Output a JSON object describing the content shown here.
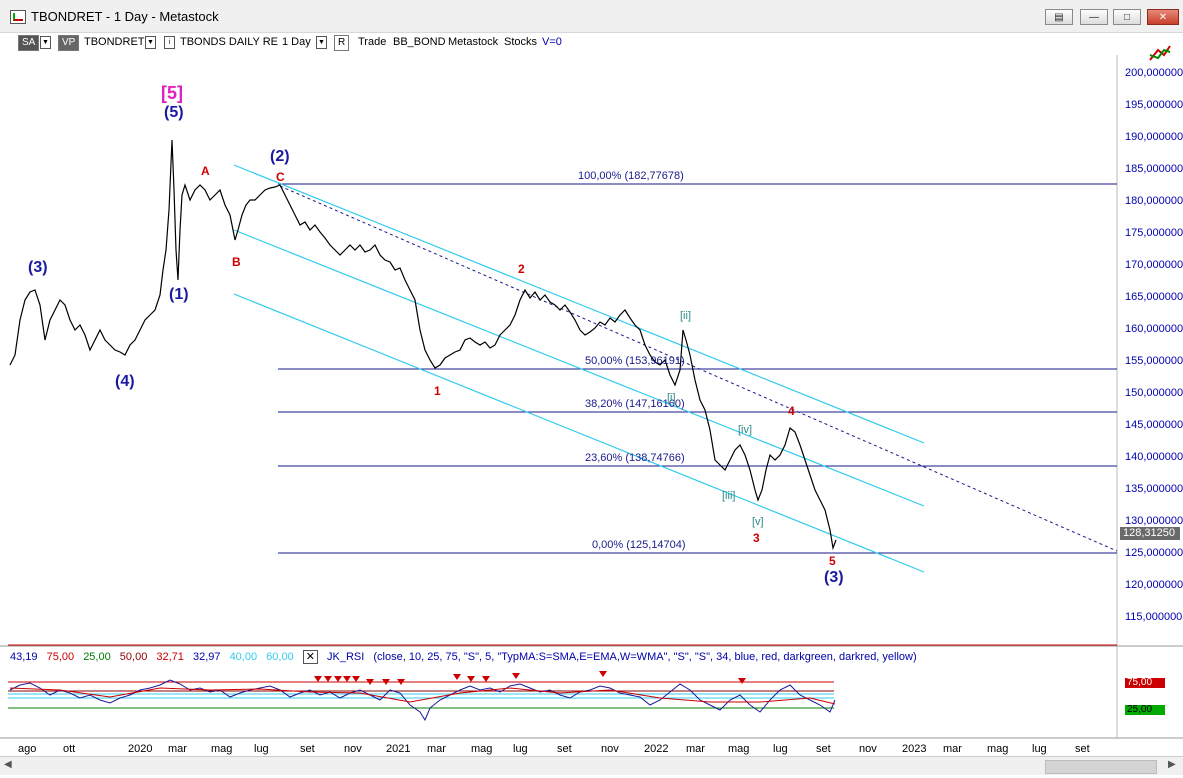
{
  "window": {
    "title": "TBONDRET - 1 Day - Metastock"
  },
  "toolbar": {
    "sa": "SA",
    "vp": "VP",
    "symbol": "TBONDRET",
    "desc": "TBONDS DAILY RE",
    "period": "1 Day",
    "r": "R",
    "trade": "Trade",
    "source": "BB_BOND",
    "app": "Metastock",
    "type": "Stocks",
    "v": "V=0"
  },
  "price_axis": [
    "200,000000",
    "195,000000",
    "190,000000",
    "185,000000",
    "180,000000",
    "175,000000",
    "170,000000",
    "165,000000",
    "160,000000",
    "155,000000",
    "150,000000",
    "145,000000",
    "140,000000",
    "135,000000",
    "130,000000",
    "125,000000",
    "120,000000",
    "115,000000"
  ],
  "last_price": "128,31250",
  "fib_levels": [
    {
      "label": "100,00% (182,77678)"
    },
    {
      "label": "50,00% (153,96191)"
    },
    {
      "label": "38,20% (147,16160)"
    },
    {
      "label": "23,60% (138,74766)"
    },
    {
      "label": "0,00% (125,14704)"
    }
  ],
  "wave_labels": {
    "w5_bracket": "[5]",
    "w5": "(5)",
    "w3a": "(3)",
    "w4": "(4)",
    "w1": "(1)",
    "w2": "(2)",
    "w3b": "(3)",
    "A": "A",
    "B": "B",
    "C": "C",
    "n1": "1",
    "n2": "2",
    "n3": "3",
    "n4": "4",
    "n5": "5",
    "ii": "[ii]",
    "iii": "[iii]",
    "iv": "[iv]",
    "v": "[v]",
    "i": "[i]"
  },
  "indicator": {
    "values": [
      "43,19",
      "75,00",
      "25,00",
      "50,00",
      "32,71",
      "32,97",
      "40,00",
      "60,00"
    ],
    "value_colors": [
      "#0000aa",
      "#cc0000",
      "#008000",
      "#8b0000",
      "#cc0000",
      "#0000aa",
      "#00aaff",
      "#00aaff"
    ],
    "name": "JK_RSI",
    "params": "(close, 10, 25, 75, \"S\", 5, \"TypMA:S=SMA,E=EMA,W=WMA\", \"S\", \"S\", 34, blue, red, darkgreen, darkred, yellow)",
    "tags": [
      "75,00",
      "25,00"
    ]
  },
  "x_axis": [
    "ago",
    "ott",
    "2020",
    "mar",
    "mag",
    "lug",
    "set",
    "nov",
    "2021",
    "mar",
    "mag",
    "lug",
    "set",
    "nov",
    "2022",
    "mar",
    "mag",
    "lug",
    "set",
    "nov",
    "2023",
    "mar",
    "mag",
    "lug",
    "set"
  ],
  "colors": {
    "price": "#000000",
    "channel": "#33ccee",
    "fib": "#1a1a8a",
    "axis": "#0000aa",
    "rsi_upper": "#cc0000",
    "rsi_lower": "#008000"
  }
}
